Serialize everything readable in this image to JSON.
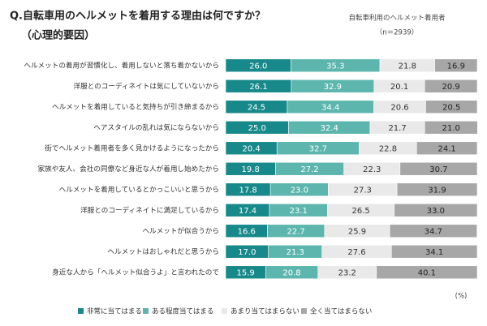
{
  "chart_data": {
    "type": "stacked-bar-horizontal",
    "title": "Q.自転車用のヘルメットを着用する理由は何ですか？",
    "subtitle": "（心理的要因）",
    "note": "自転車利用のヘルメット着用者",
    "sample_size": "（n＝2939）",
    "unit_label": "(%)",
    "xlim": [
      0,
      100
    ],
    "categories": [
      "ヘルメットの着用が習慣化し、着用しないと落ち着かないから",
      "洋服とのコーディネイトは気にしていないから",
      "ヘルメットを着用していると気持ちが引き締まるから",
      "ヘアスタイルの乱れは気にならないから",
      "街でヘルメット着用者を多く見かけるようになったから",
      "家族や友人、会社の同僚など身近な人が着用し始めたから",
      "ヘルメットを着用しているとかっこいいと思うから",
      "洋服とのコーディネイトに満足しているから",
      "ヘルメットが似合うから",
      "ヘルメットはおしゃれだと思うから",
      "身近な人から「ヘルメット似合うよ」と言われたので"
    ],
    "series": [
      {
        "name": "非常に当てはまる",
        "color": "#17898a",
        "text_color": "#ffffff",
        "values": [
          26.0,
          26.1,
          24.5,
          25.0,
          20.4,
          19.8,
          17.8,
          17.4,
          16.6,
          17.0,
          15.9
        ],
        "value_labels": [
          "26.0",
          "26.1",
          "24.5",
          "25.0",
          "20.4",
          "19.8",
          "17.8",
          "17.4",
          "16.6",
          "17.0",
          "15.9"
        ]
      },
      {
        "name": "ある程度当てはまる",
        "color": "#5db6ae",
        "text_color": "#ffffff",
        "values": [
          35.3,
          32.9,
          34.4,
          32.4,
          32.7,
          27.2,
          23.0,
          23.1,
          22.7,
          21.3,
          20.8
        ],
        "value_labels": [
          "35.3",
          "32.9",
          "34.4",
          "32.4",
          "32.7",
          "27.2",
          "23.0",
          "23.1",
          "22.7",
          "21.3",
          "20.8"
        ]
      },
      {
        "name": "あまり当てはまらない",
        "color": "#e9e9e9",
        "text_color": "#333333",
        "values": [
          21.8,
          20.1,
          20.6,
          21.7,
          22.8,
          22.3,
          27.3,
          26.5,
          25.9,
          27.6,
          23.2
        ],
        "value_labels": [
          "21.8",
          "20.1",
          "20.6",
          "21.7",
          "22.8",
          "22.3",
          "27.3",
          "26.5",
          "25.9",
          "27.6",
          "23.2"
        ]
      },
      {
        "name": "全く当てはまらない",
        "color": "#a7a7a7",
        "text_color": "#222222",
        "values": [
          16.9,
          20.9,
          20.5,
          21.0,
          24.1,
          30.7,
          31.9,
          33.0,
          34.7,
          34.1,
          40.1
        ],
        "value_labels": [
          "16.9",
          "20.9",
          "20.5",
          "21.0",
          "24.1",
          "30.7",
          "31.9",
          "33.0",
          "34.7",
          "34.1",
          "40.1"
        ]
      }
    ]
  }
}
